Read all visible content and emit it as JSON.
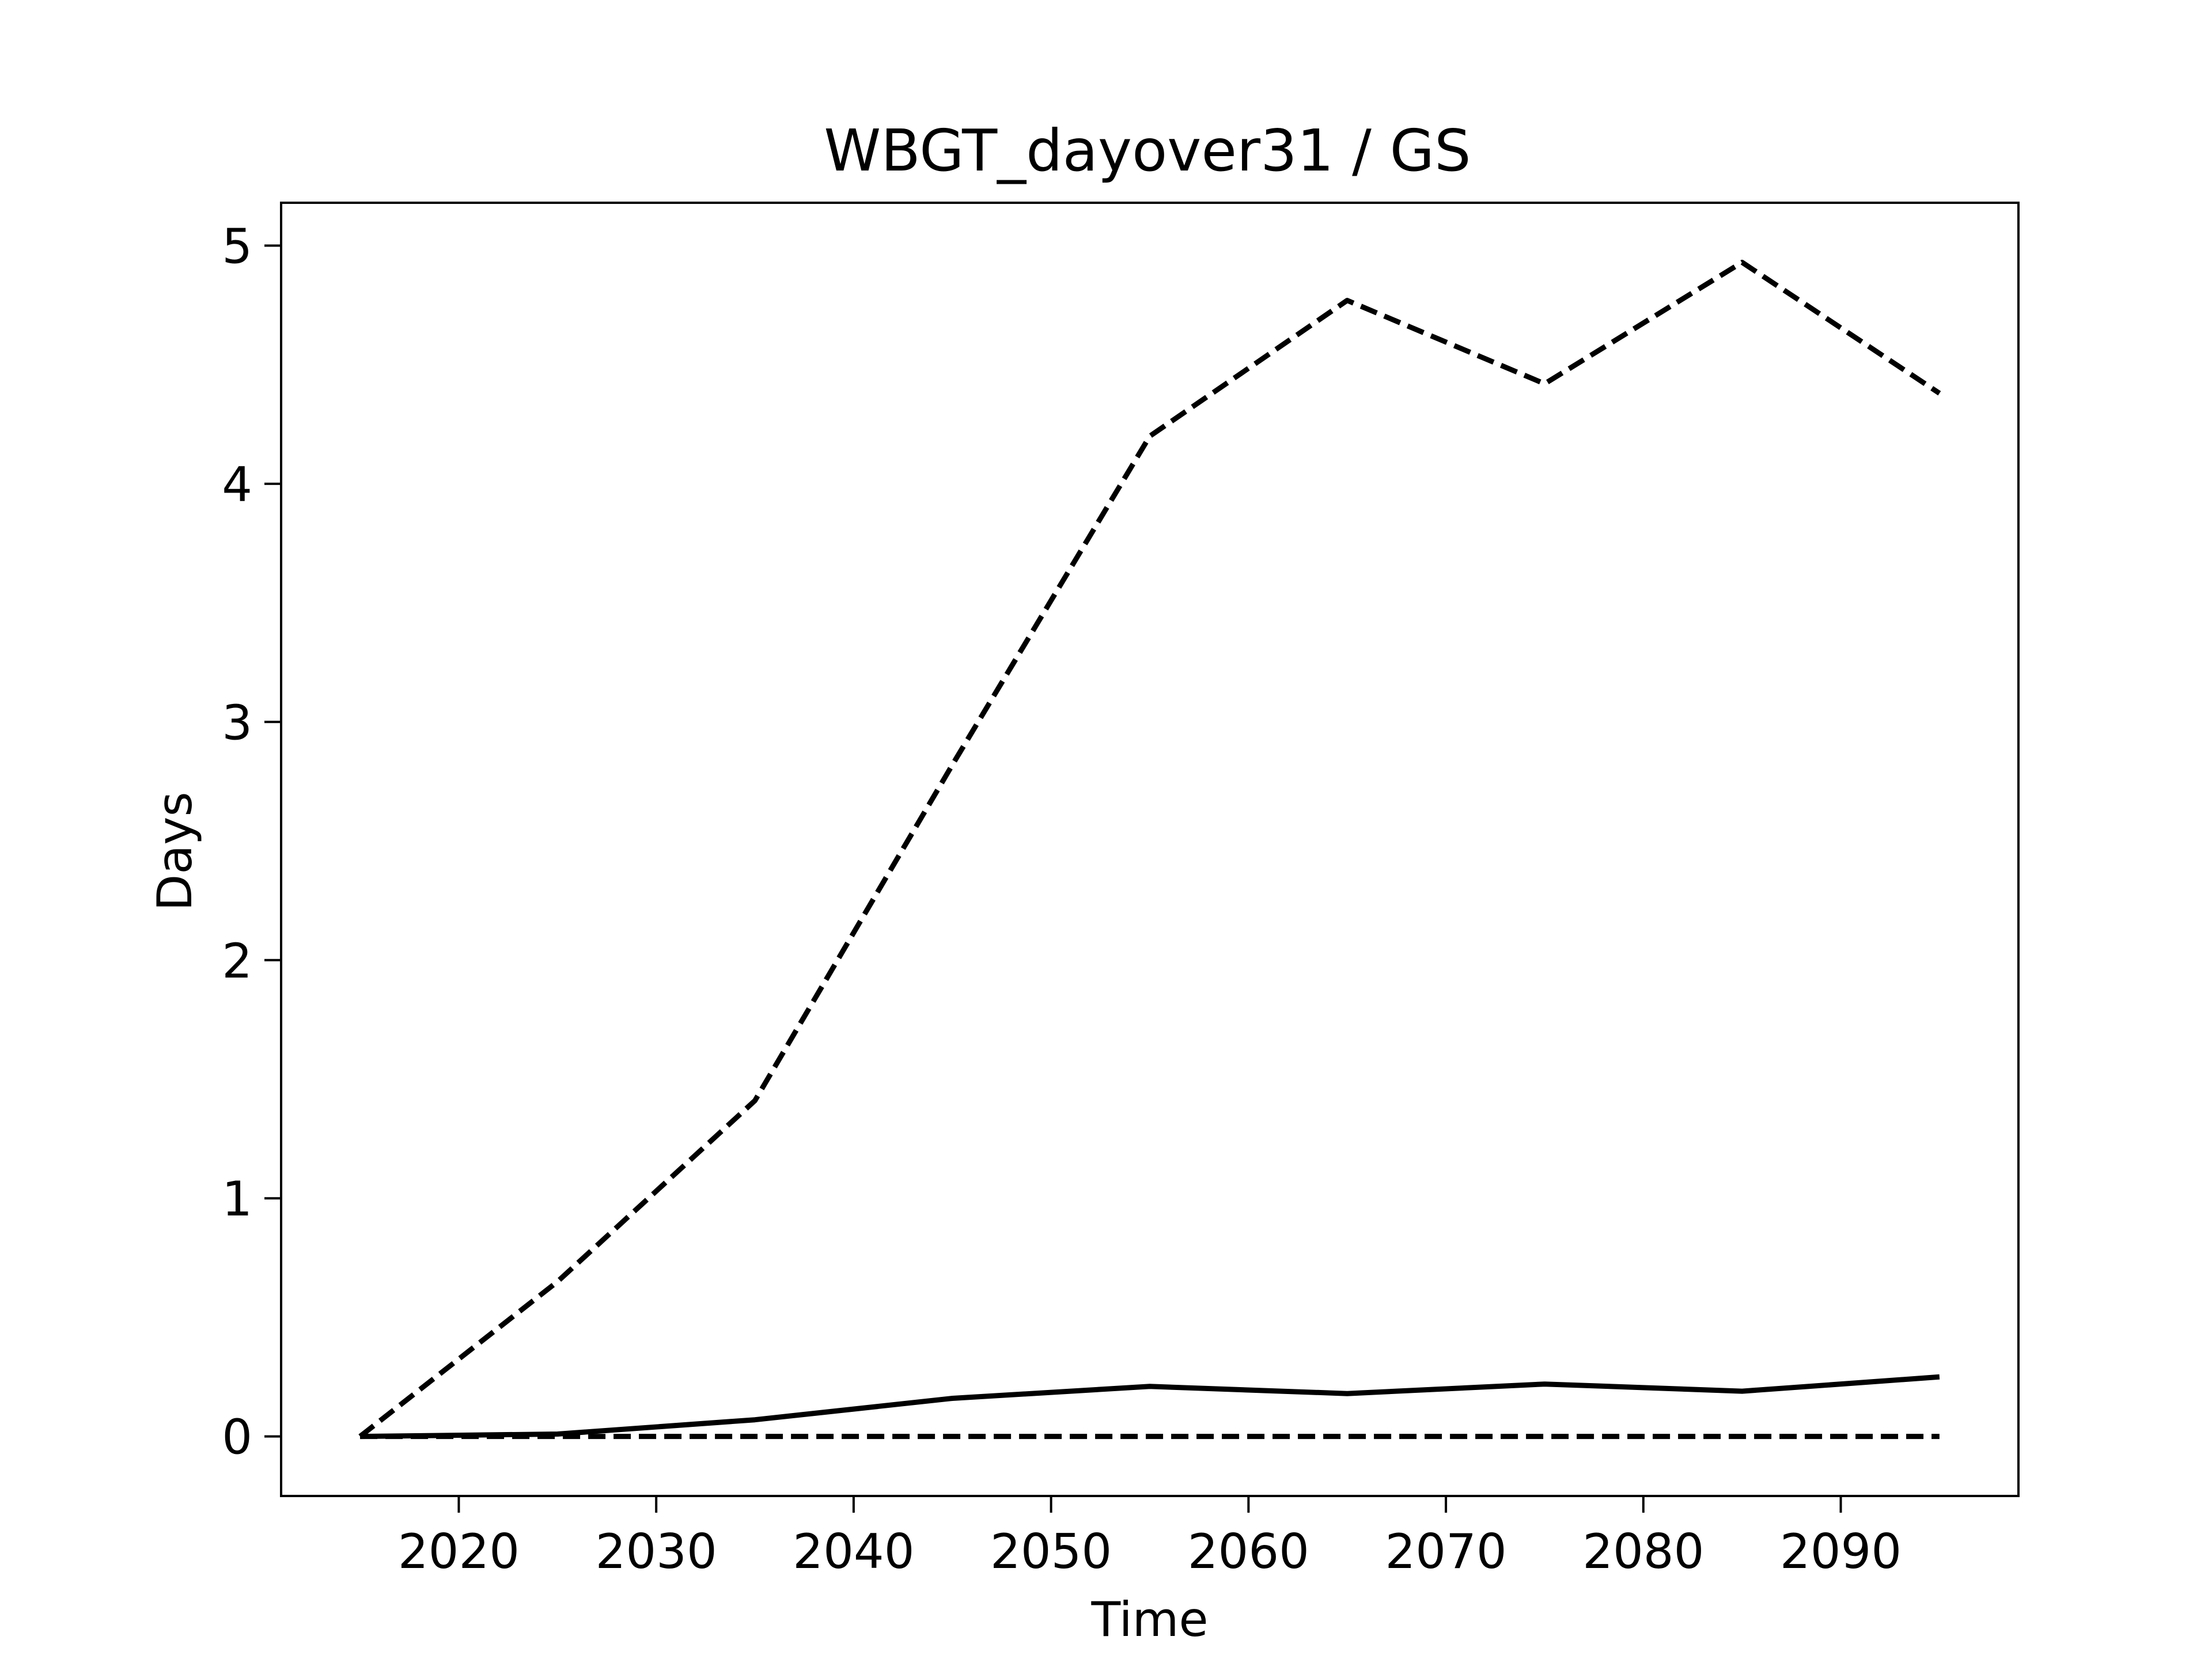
{
  "chart_data": {
    "type": "line",
    "title": "WBGT_dayover31 / GS",
    "xlabel": "Time",
    "ylabel": "Days",
    "xlim": [
      2011,
      2099
    ],
    "ylim": [
      -0.25,
      5.18
    ],
    "xticks": [
      2020,
      2030,
      2040,
      2050,
      2060,
      2070,
      2080,
      2090
    ],
    "yticks": [
      0,
      1,
      2,
      3,
      4,
      5
    ],
    "grid": false,
    "legend": "none",
    "x": [
      2015,
      2025,
      2035,
      2045,
      2055,
      2065,
      2075,
      2085,
      2095
    ],
    "series": [
      {
        "style": "dashed",
        "color": "#000000",
        "values": [
          0.0,
          0.65,
          1.41,
          2.82,
          4.2,
          4.77,
          4.42,
          4.93,
          4.38
        ]
      },
      {
        "style": "solid",
        "color": "#000000",
        "values": [
          0.0,
          0.01,
          0.07,
          0.16,
          0.21,
          0.18,
          0.22,
          0.19,
          0.25
        ]
      },
      {
        "style": "dashed",
        "color": "#000000",
        "values": [
          0.0,
          0.0,
          0.0,
          0.0,
          0.0,
          0.0,
          0.0,
          0.0,
          0.0
        ]
      }
    ]
  }
}
